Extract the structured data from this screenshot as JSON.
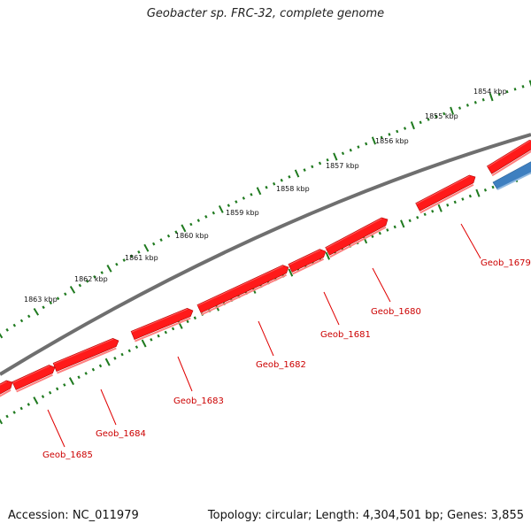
{
  "title": "Geobacter sp. FRC-32, complete genome",
  "footer": {
    "accession": "Accession: NC_011979",
    "summary": "Topology: circular; Length: 4,304,501 bp; Genes: 3,855"
  },
  "colors": {
    "backbone": "#6f6f6f",
    "forward_gene": "#ff1a1a",
    "reverse_gene": "#3e7fc0",
    "tick": "#1f7a1f",
    "gene_label": "#cc0000",
    "label_line": "#e00000"
  },
  "scale_labels": [
    "1854 kbp",
    "1855 kbp",
    "1856 kbp",
    "1857 kbp",
    "1858 kbp",
    "1859 kbp",
    "1860 kbp",
    "1861 kbp",
    "1862 kbp",
    "1863 kbp"
  ],
  "genes": [
    {
      "name": "Geob_1679",
      "strand": "+"
    },
    {
      "name": "Geob_1680",
      "strand": "+"
    },
    {
      "name": "Geob_1681",
      "strand": "+"
    },
    {
      "name": "Geob_1682",
      "strand": "+"
    },
    {
      "name": "Geob_1683",
      "strand": "+"
    },
    {
      "name": "Geob_1684",
      "strand": "+"
    },
    {
      "name": "Geob_1685",
      "strand": "+"
    }
  ]
}
